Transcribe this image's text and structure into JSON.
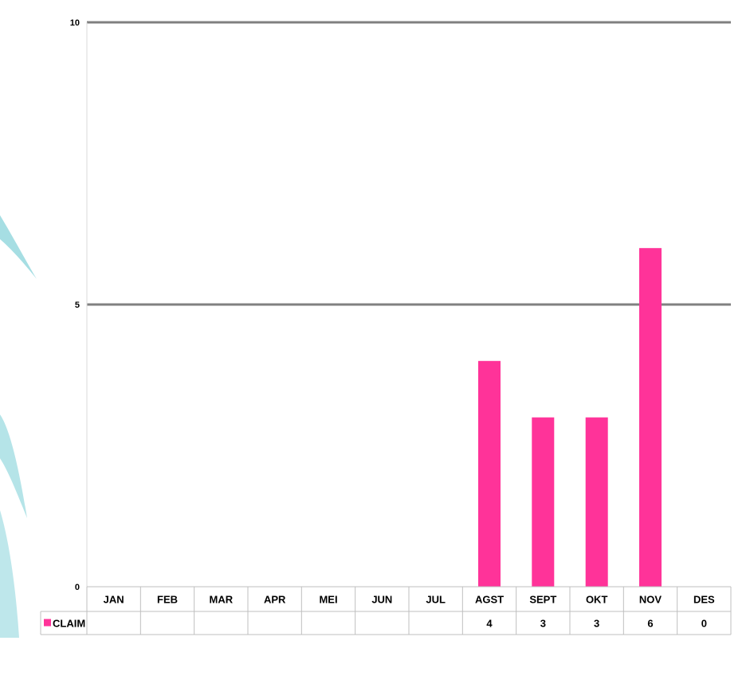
{
  "chart_data": {
    "type": "bar",
    "categories": [
      "JAN",
      "FEB",
      "MAR",
      "APR",
      "MEI",
      "JUN",
      "JUL",
      "AGST",
      "SEPT",
      "OKT",
      "NOV",
      "DES"
    ],
    "series": [
      {
        "name": "CLAIM",
        "color": "#ff3399",
        "values": [
          null,
          null,
          null,
          null,
          null,
          null,
          null,
          4,
          3,
          3,
          6,
          0
        ]
      }
    ],
    "yticks": [
      "0",
      "5",
      "10"
    ],
    "ylim": [
      0,
      10
    ],
    "grid": true,
    "data_table": true,
    "legend_placement": "data-table-left"
  }
}
